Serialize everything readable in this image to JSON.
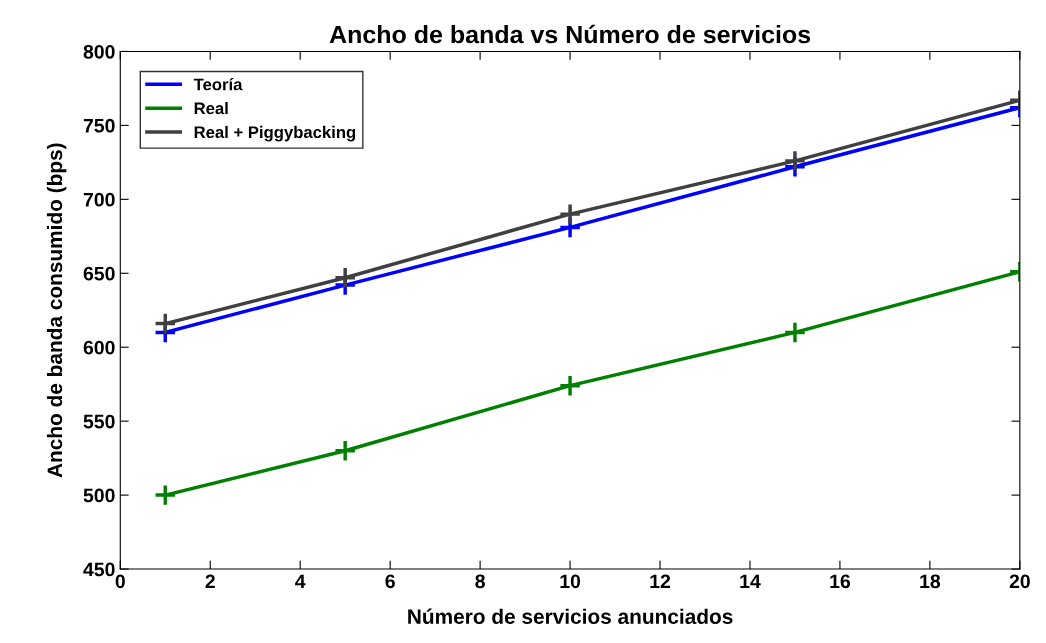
{
  "chart_data": {
    "type": "line",
    "title": "Ancho de banda vs Número de servicios",
    "xlabel": "Número de servicios anunciados",
    "ylabel": "Ancho de banda consumido (bps)",
    "x": [
      1,
      5,
      10,
      15,
      20
    ],
    "series": [
      {
        "name": "Teoría",
        "color": "#0000ff",
        "values": [
          610,
          642,
          681,
          722,
          762
        ]
      },
      {
        "name": "Real",
        "color": "#008000",
        "values": [
          500,
          530,
          574,
          610,
          651
        ]
      },
      {
        "name": "Real + Piggybacking",
        "color": "#404040",
        "values": [
          616,
          647,
          690,
          726,
          767
        ]
      }
    ],
    "xlim": [
      0,
      20
    ],
    "xticks": [
      0,
      2,
      4,
      6,
      8,
      10,
      12,
      14,
      16,
      18,
      20
    ],
    "ylim": [
      450,
      800
    ],
    "yticks": [
      450,
      500,
      550,
      600,
      650,
      700,
      750,
      800
    ],
    "marker": "cross",
    "line_style": "solid",
    "grid": false,
    "legend": "top left"
  }
}
